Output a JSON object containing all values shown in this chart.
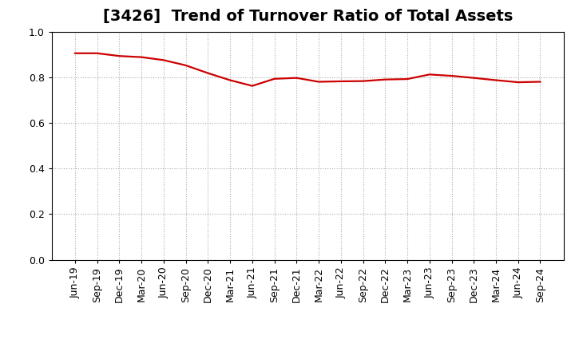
{
  "title": "[3426]  Trend of Turnover Ratio of Total Assets",
  "x_labels": [
    "Jun-19",
    "Sep-19",
    "Dec-19",
    "Mar-20",
    "Jun-20",
    "Sep-20",
    "Dec-20",
    "Mar-21",
    "Jun-21",
    "Sep-21",
    "Dec-21",
    "Mar-22",
    "Jun-22",
    "Sep-22",
    "Dec-22",
    "Mar-23",
    "Jun-23",
    "Sep-23",
    "Dec-23",
    "Mar-24",
    "Jun-24",
    "Sep-24"
  ],
  "values": [
    0.905,
    0.905,
    0.893,
    0.888,
    0.875,
    0.852,
    0.818,
    0.787,
    0.762,
    0.793,
    0.797,
    0.78,
    0.782,
    0.783,
    0.79,
    0.792,
    0.812,
    0.806,
    0.797,
    0.787,
    0.778,
    0.78
  ],
  "line_color": "#cc0000",
  "line_width": 1.6,
  "ylim": [
    0.0,
    1.0
  ],
  "yticks": [
    0.0,
    0.2,
    0.4,
    0.6,
    0.8,
    1.0
  ],
  "background_color": "#ffffff",
  "grid_color": "#aaaaaa",
  "title_fontsize": 14,
  "tick_fontsize": 9,
  "spine_color": "#000000"
}
